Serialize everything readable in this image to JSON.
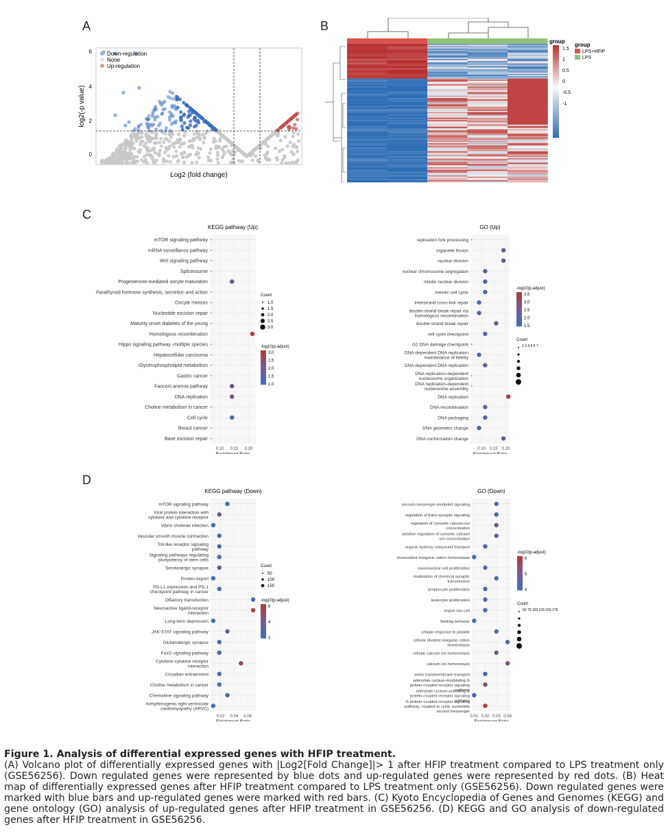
{
  "panels": {
    "a": "A",
    "b": "B",
    "c": "C",
    "d": "D"
  },
  "volcano": {
    "ylabel": "log2(-p value)",
    "xlabel": "Log2 (fold change)",
    "yticks": [
      "6",
      "4",
      "2",
      "0"
    ],
    "legend": [
      "Down-regulation",
      "None",
      "Up-regulation"
    ],
    "colors": {
      "down": "#3a6fbf",
      "none": "#c8c8c8",
      "up": "#c0504d"
    }
  },
  "heatmap": {
    "legend_title": "group",
    "scale_title": "group",
    "scale_ticks": [
      "1.5",
      "1",
      "0.5",
      "0",
      "-0.5",
      "-1"
    ],
    "groups": [
      "LPS+HFIP",
      "LPS"
    ],
    "group_colors": {
      "LPS+HFIP": "#d9534f",
      "LPS": "#8fc17a"
    }
  },
  "kegg_up": {
    "title": "KEGG pathway (Up)",
    "xlabel": "Enrichment Ratio",
    "xticks": [
      "0.10",
      "0.15",
      "0.20"
    ],
    "count_title": "Count",
    "count_ticks": [
      "1.0",
      "1.5",
      "2.0",
      "2.5",
      "3.0"
    ],
    "color_title": "-log10(p.adjust)",
    "color_ticks": [
      "3.0",
      "2.5",
      "2.0",
      "1.5",
      "1.0"
    ],
    "rows": [
      {
        "label": "mTOR signaling pathway",
        "x": 0.07,
        "c": 0
      },
      {
        "label": "mRNA surveillance pathway",
        "x": 0.07,
        "c": 0
      },
      {
        "label": "Wnt signaling pathway",
        "x": 0.07,
        "c": 0
      },
      {
        "label": "Spliceosome",
        "x": 0.07,
        "c": 0
      },
      {
        "label": "Progesterone-mediated oocyte maturation",
        "x": 0.142,
        "c": 0.3
      },
      {
        "label": "Parathyroid hormone synthesis, secretion and action",
        "x": 0.07,
        "c": 0
      },
      {
        "label": "Oocyte meiosis",
        "x": 0.07,
        "c": 0
      },
      {
        "label": "Nucleotide excision repair",
        "x": 0.07,
        "c": 0
      },
      {
        "label": "Maturity onset diabetes of the young",
        "x": 0.07,
        "c": 0
      },
      {
        "label": "Homologous recombination",
        "x": 0.213,
        "c": 1
      },
      {
        "label": "Hippo signaling pathway -multiple species",
        "x": 0.07,
        "c": 0
      },
      {
        "label": "Hepatocellular carcinoma",
        "x": 0.07,
        "c": 0
      },
      {
        "label": "Glycerophospholipid metabolism",
        "x": 0.07,
        "c": 0
      },
      {
        "label": "Gastric cancer",
        "x": 0.07,
        "c": 0
      },
      {
        "label": "Fanconi anemia pathway",
        "x": 0.142,
        "c": 0.45
      },
      {
        "label": "DNA replication",
        "x": 0.142,
        "c": 0.5
      },
      {
        "label": "Choline metabolism in cancer",
        "x": 0.07,
        "c": 0
      },
      {
        "label": "Cell cycle",
        "x": 0.142,
        "c": 0.2
      },
      {
        "label": "Breast cancer",
        "x": 0.07,
        "c": 0
      },
      {
        "label": "Base excision repair",
        "x": 0.07,
        "c": 0
      }
    ]
  },
  "go_up": {
    "title": "GO (Up)",
    "xlabel": "Enrichment Ratio",
    "xticks": [
      "0.10",
      "0.15",
      "0.20"
    ],
    "color_title": "-log10(p.adjust)",
    "color_ticks": [
      "3.5",
      "3.0",
      "2.5",
      "2.0",
      "1.5"
    ],
    "count_title": "Count",
    "count_ticks": "2 3 4 5 6 7",
    "rows": [
      {
        "label": "replication fork processing",
        "x": 0.06,
        "c": 0
      },
      {
        "label": "organelle fission",
        "x": 0.19,
        "c": 0.35
      },
      {
        "label": "nuclear division",
        "x": 0.19,
        "c": 0.3
      },
      {
        "label": "nuclear chromosome segregation",
        "x": 0.115,
        "c": 0.2
      },
      {
        "label": "mitotic nuclear division",
        "x": 0.115,
        "c": 0.2
      },
      {
        "label": "meiotic cell cycle",
        "x": 0.115,
        "c": 0.15
      },
      {
        "label": "interstrand cross-link repair",
        "x": 0.09,
        "c": 0.1
      },
      {
        "label": "double-strand break repair via homologous recombination",
        "x": 0.09,
        "c": 0.1
      },
      {
        "label": "double-strand break repair",
        "x": 0.16,
        "c": 0.3
      },
      {
        "label": "cell cycle checkpoint",
        "x": 0.115,
        "c": 0.15
      },
      {
        "label": "G2 DNA damage checkpoint",
        "x": 0.06,
        "c": 0
      },
      {
        "label": "DNA-dependent DNA replication maintenance of fidelity",
        "x": 0.09,
        "c": 0.1
      },
      {
        "label": "DNA-dependent DNA replication",
        "x": 0.115,
        "c": 0.3
      },
      {
        "label": "DNA replication-dependent nucleosome organization",
        "x": 0.06,
        "c": 0
      },
      {
        "label": "DNA replication-dependent nucleosome assembly",
        "x": 0.06,
        "c": 0
      },
      {
        "label": "DNA replication",
        "x": 0.21,
        "c": 1
      },
      {
        "label": "DNA recombination",
        "x": 0.115,
        "c": 0.2
      },
      {
        "label": "DNA packaging",
        "x": 0.115,
        "c": 0.2
      },
      {
        "label": "DNA geometric change",
        "x": 0.09,
        "c": 0.1
      },
      {
        "label": "DNA conformation change",
        "x": 0.19,
        "c": 0.3
      }
    ]
  },
  "kegg_down": {
    "title": "KEGG pathway (Down)",
    "xlabel": "Enrichment Ratio",
    "xticks": [
      "0.02",
      "0.04",
      "0.06"
    ],
    "count_title": "Count",
    "count_ticks": [
      "50",
      "100",
      "150"
    ],
    "color_title": "-log10(p.adjust)",
    "color_ticks": [
      "6",
      "4",
      "2"
    ],
    "rows": [
      {
        "label": "mTOR signaling pathway",
        "x": 0.03,
        "c": 0.1
      },
      {
        "label": "Viral protein interaction with cytokine and cytokine receptor",
        "x": 0.018,
        "c": 0.3
      },
      {
        "label": "Vibrio cholerae infection",
        "x": 0.009,
        "c": 0
      },
      {
        "label": "Vascular smooth muscle contraction",
        "x": 0.018,
        "c": 0.1
      },
      {
        "label": "Toll-like receptor signaling pathway",
        "x": 0.018,
        "c": 0.1
      },
      {
        "label": "Signaling pathways regulating pluripotency of stem cells",
        "x": 0.018,
        "c": 0.1
      },
      {
        "label": "Serotonergic synapse",
        "x": 0.018,
        "c": 0.3
      },
      {
        "label": "Protein export",
        "x": 0.009,
        "c": 0
      },
      {
        "label": "PD-L1 expression and PD-1 checkpoint pathway in cancer",
        "x": 0.018,
        "c": 0.1
      },
      {
        "label": "Olfactory transduction",
        "x": 0.068,
        "c": 0.1
      },
      {
        "label": "Neuroactive ligand-receptor interaction",
        "x": 0.068,
        "c": 0.9
      },
      {
        "label": "Long-term depression",
        "x": 0.009,
        "c": 0
      },
      {
        "label": "JAK-STAT signaling pathway",
        "x": 0.03,
        "c": 0.2
      },
      {
        "label": "Glutamatergic synapse",
        "x": 0.018,
        "c": 0.1
      },
      {
        "label": "FoxO signaling pathway",
        "x": 0.018,
        "c": 0.1
      },
      {
        "label": "Cytokine-cytokine receptor interaction",
        "x": 0.05,
        "c": 0.7
      },
      {
        "label": "Circadian entrainment",
        "x": 0.018,
        "c": 0.1
      },
      {
        "label": "Choline metabolism in cancer",
        "x": 0.018,
        "c": 0.1
      },
      {
        "label": "Chemokine signaling pathway",
        "x": 0.03,
        "c": 0.1
      },
      {
        "label": "Arrhythmogenic right ventricular cardiomyopathy (ARVC)",
        "x": 0.009,
        "c": 0
      }
    ]
  },
  "go_down": {
    "title": "GO (Down)",
    "xlabel": "Enrichment Ratio",
    "xticks": [
      "0.01",
      "0.02",
      "0.03",
      "0.04"
    ],
    "color_title": "-log10(p.adjust)",
    "color_ticks": [
      "6",
      "5",
      "4"
    ],
    "count_title": "Count",
    "count_ticks": "50 75 100 125 150 175",
    "rows": [
      {
        "label": "second-messenger-mediated signaling",
        "x": 0.03,
        "c": 0.1
      },
      {
        "label": "regulation of trans-synaptic signaling",
        "x": 0.03,
        "c": 0.1
      },
      {
        "label": "regulation of cytosolic calcium ion concentration",
        "x": 0.03,
        "c": 0.3
      },
      {
        "label": "positive regulation of cytosolic calcium ion concentration",
        "x": 0.03,
        "c": 0.2
      },
      {
        "label": "organic hydroxy compound transport",
        "x": 0.02,
        "c": 0.1
      },
      {
        "label": "monovalent inorganic cation homeostasis",
        "x": 0.01,
        "c": 0
      },
      {
        "label": "mononuclear cell proliferation",
        "x": 0.02,
        "c": 0.1
      },
      {
        "label": "modulation of chemical synaptic transmission",
        "x": 0.03,
        "c": 0.1
      },
      {
        "label": "lymphocyte proliferation",
        "x": 0.02,
        "c": 0.1
      },
      {
        "label": "leukocyte proliferation",
        "x": 0.02,
        "c": 0.1
      },
      {
        "label": "import into cell",
        "x": 0.02,
        "c": 0.1
      },
      {
        "label": "feeding behavior",
        "x": 0.01,
        "c": 0
      },
      {
        "label": "cellular response to peptide",
        "x": 0.03,
        "c": 0.1
      },
      {
        "label": "cellular divalent inorganic cation homeostasis",
        "x": 0.04,
        "c": 0.2
      },
      {
        "label": "cellular calcium ion homeostasis",
        "x": 0.03,
        "c": 0.3
      },
      {
        "label": "calcium ion homeostasis",
        "x": 0.04,
        "c": 0.5
      },
      {
        "label": "anion transmembrane transport",
        "x": 0.02,
        "c": 0.1
      },
      {
        "label": "adenylate cyclase-modulating G protein-coupled receptor signaling pathway",
        "x": 0.02,
        "c": 0.6
      },
      {
        "label": "adenylate cyclase-activating G protein-coupled receptor signaling pathway",
        "x": 0.01,
        "c": 0
      },
      {
        "label": "G protein-coupled receptor signaling pathway, coupled to cyclic nucleotide second messenger",
        "x": 0.02,
        "c": 1
      }
    ]
  },
  "caption": {
    "title": "Figure 1. Analysis of differential expressed genes with HFIP treatment.",
    "body": "(A) Volcano plot of differentially expressed genes with |Log2[Fold Change]|> 1 after HFIP treatment compared to LPS treatment only (GSE56256). Down regulated genes were represented by blue dots and up-regulated genes were represented by red dots. (B) Heat map of differentially expressed genes after HFIP treatment compared to LPS treatment only (GSE56256). Down regulated genes were marked with blue bars and up-regulated genes were marked with red bars. (C) Kyoto Encyclopedia of Genes and Genomes (KEGG) and gene ontology (GO) analysis of up-regulated genes after HFIP treatment in GSE56256. (D) KEGG and GO analysis of down-regulated genes after HFIP treatment in GSE56256."
  }
}
